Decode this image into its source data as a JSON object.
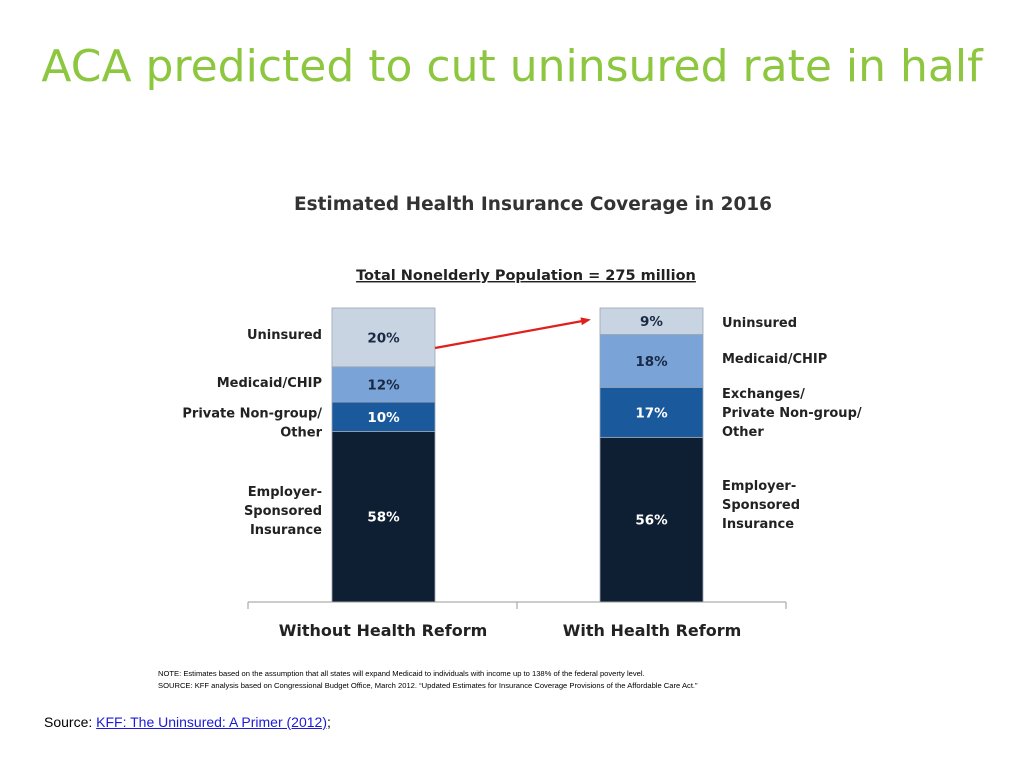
{
  "slide": {
    "title": "ACA predicted to cut uninsured rate in half"
  },
  "chart_data": {
    "type": "bar",
    "stacked": true,
    "title": "Estimated Health Insurance Coverage in 2016",
    "subtitle": "Total Nonelderly Population = 275 million",
    "categories": [
      "Without Health Reform",
      "With Health Reform"
    ],
    "series": [
      {
        "key": "employer",
        "values": [
          58,
          56
        ],
        "color": "#0f1f33",
        "label_color": "#ffffff",
        "left_label": [
          "Employer-",
          "Sponsored",
          "Insurance"
        ],
        "right_label": [
          "Employer-",
          "Sponsored",
          "Insurance"
        ]
      },
      {
        "key": "private",
        "values": [
          10,
          17
        ],
        "color": "#1a5a9c",
        "label_color": "#ffffff",
        "left_label": [
          "Private Non-group/",
          "Other"
        ],
        "right_label": [
          "Exchanges/",
          "Private Non-group/",
          "Other"
        ]
      },
      {
        "key": "medicaid",
        "values": [
          12,
          18
        ],
        "color": "#7aa4d8",
        "label_color": "#1a2a44",
        "left_label": [
          "Medicaid/CHIP"
        ],
        "right_label": [
          "Medicaid/CHIP"
        ]
      },
      {
        "key": "uninsured",
        "values": [
          20,
          9
        ],
        "color": "#c8d4e2",
        "label_color": "#1a2a44",
        "left_label": [
          "Uninsured"
        ],
        "right_label": [
          "Uninsured"
        ]
      }
    ],
    "value_suffix": "%",
    "ylim": [
      0,
      100
    ],
    "arrow_color": "#e0201c"
  },
  "notes": {
    "note": "NOTE: Estimates based on the assumption that all states will expand Medicaid to individuals with income up to 138% of the federal poverty level.",
    "source": "SOURCE:  KFF analysis  based on Congressional Budget Office, March 2012. “Updated Estimates for Insurance Coverage Provisions of the Affordable Care Act.”"
  },
  "footer": {
    "source_prefix": "Source: ",
    "link_text": "KFF: The Uninsured: A Primer (2012)",
    "suffix": ";"
  }
}
